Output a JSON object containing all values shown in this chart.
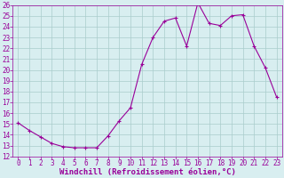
{
  "x": [
    0,
    1,
    2,
    3,
    4,
    5,
    6,
    7,
    8,
    9,
    10,
    11,
    12,
    13,
    14,
    15,
    16,
    17,
    18,
    19,
    20,
    21,
    22,
    23
  ],
  "y": [
    15.1,
    14.4,
    13.8,
    13.2,
    12.9,
    12.8,
    12.8,
    12.8,
    13.9,
    15.3,
    16.5,
    20.5,
    23.0,
    24.5,
    24.8,
    22.2,
    26.2,
    24.3,
    24.1,
    25.0,
    25.1,
    22.2,
    20.2,
    17.5
  ],
  "line_color": "#990099",
  "marker": "+",
  "marker_size": 3,
  "bg_color": "#d8eef0",
  "grid_color": "#aacccc",
  "xlabel": "Windchill (Refroidissement éolien,°C)",
  "xlabel_color": "#990099",
  "tick_color": "#990099",
  "axis_color": "#990099",
  "ylim": [
    12,
    26
  ],
  "xlim_min": -0.5,
  "xlim_max": 23.5,
  "yticks": [
    12,
    13,
    14,
    15,
    16,
    17,
    18,
    19,
    20,
    21,
    22,
    23,
    24,
    25,
    26
  ],
  "xticks": [
    0,
    1,
    2,
    3,
    4,
    5,
    6,
    7,
    8,
    9,
    10,
    11,
    12,
    13,
    14,
    15,
    16,
    17,
    18,
    19,
    20,
    21,
    22,
    23
  ],
  "font_size": 5.5,
  "xlabel_fontsize": 6.5,
  "line_width": 0.8
}
